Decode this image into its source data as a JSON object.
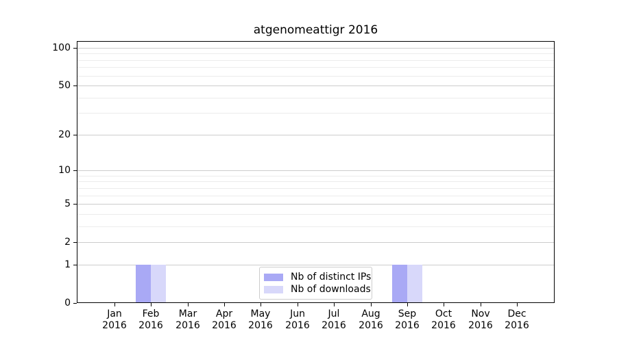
{
  "chart_data": {
    "type": "bar",
    "title": "atgenomeattigr 2016",
    "categories": [
      {
        "month": "Jan",
        "year": "2016"
      },
      {
        "month": "Feb",
        "year": "2016"
      },
      {
        "month": "Mar",
        "year": "2016"
      },
      {
        "month": "Apr",
        "year": "2016"
      },
      {
        "month": "May",
        "year": "2016"
      },
      {
        "month": "Jun",
        "year": "2016"
      },
      {
        "month": "Jul",
        "year": "2016"
      },
      {
        "month": "Aug",
        "year": "2016"
      },
      {
        "month": "Sep",
        "year": "2016"
      },
      {
        "month": "Oct",
        "year": "2016"
      },
      {
        "month": "Nov",
        "year": "2016"
      },
      {
        "month": "Dec",
        "year": "2016"
      }
    ],
    "series": [
      {
        "name": "Nb of distinct IPs",
        "color": "#a9a9f5",
        "values": [
          0,
          1,
          0,
          0,
          0,
          0,
          0,
          0,
          1,
          0,
          0,
          0
        ]
      },
      {
        "name": "Nb of downloads",
        "color": "#d8d8fa",
        "values": [
          0,
          1,
          0,
          0,
          0,
          0,
          0,
          0,
          1,
          0,
          0,
          0
        ]
      }
    ],
    "y_scale": "log1p",
    "y_ticks": [
      0,
      1,
      2,
      5,
      10,
      20,
      50,
      100
    ],
    "y_minor_ticks": [
      3,
      4,
      6,
      7,
      8,
      9,
      30,
      40,
      60,
      70,
      80,
      90
    ],
    "ylim": [
      0,
      113
    ],
    "grid": "horizontal, major and minor",
    "legend_position": "lower center",
    "colors": {
      "major_grid": "#cccccc",
      "minor_grid": "#ececec",
      "spine": "#000000",
      "text": "#000000"
    }
  }
}
